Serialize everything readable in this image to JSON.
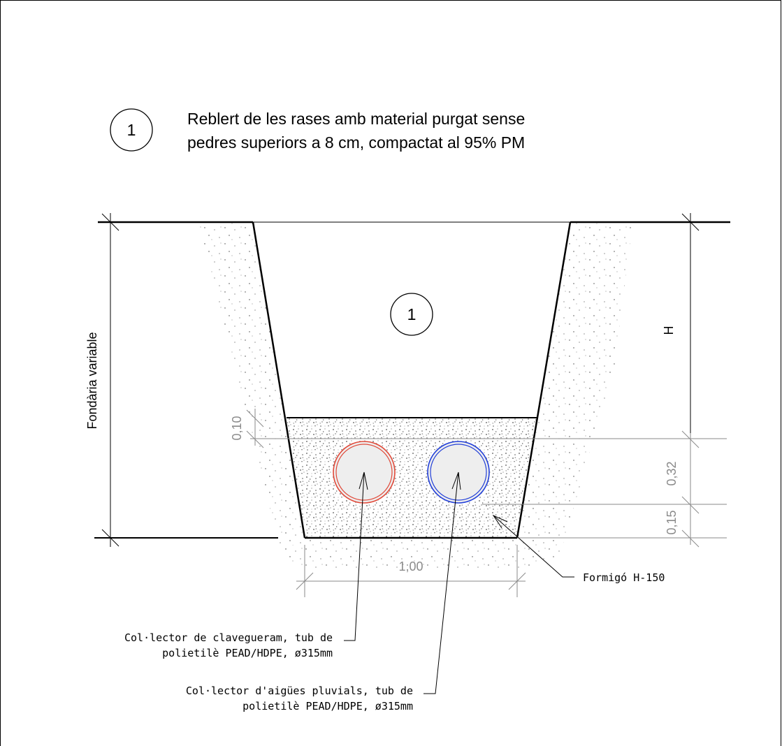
{
  "legend": {
    "number": "1",
    "line1": "Reblert de les rases amb material purgat sense",
    "line2": "pedres superiors a 8 cm, compactat al 95% PM"
  },
  "trench": {
    "fill_marker": "1",
    "depth_label": "Fondària variable",
    "height_label": "H",
    "width_label": "1,00",
    "dims": {
      "top_layer": "0,10",
      "pipe_zone": "0,32",
      "bedding": "0,15"
    }
  },
  "pipes": [
    {
      "name": "sewer",
      "color": "#e04a3a",
      "line1": "Col·lector de clavegueram, tub de",
      "line2": "polietilè PEAD/HDPE, ø315mm"
    },
    {
      "name": "stormwater",
      "color": "#2340d8",
      "line1": "Col·lector d'aigües pluvials, tub de",
      "line2": "polietilè PEAD/HDPE, ø315mm"
    }
  ],
  "concrete_label": "Formigó H-150",
  "colors": {
    "outline": "#000000",
    "dimension": "#8a8a8a",
    "pipe_fill": "#eeeeee"
  }
}
